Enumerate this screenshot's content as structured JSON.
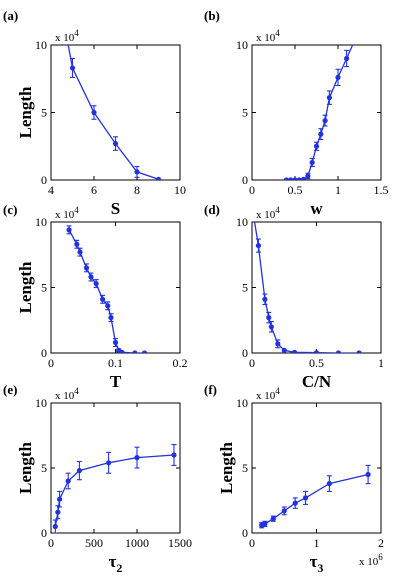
{
  "chart_data": [
    {
      "type": "line",
      "panel_label": "(a)",
      "xlabel": "S",
      "ylabel": "Length",
      "y_multiplier": "x 10",
      "y_multiplier_exp": "4",
      "xlim": [
        4,
        10
      ],
      "ylim": [
        0,
        10
      ],
      "xticks": [
        4,
        6,
        8,
        10
      ],
      "yticks": [
        0,
        5,
        10
      ],
      "color": "#2233dd",
      "curve": [
        [
          4.8,
          10
        ],
        [
          5,
          8.3
        ],
        [
          6,
          5
        ],
        [
          7,
          2.7
        ],
        [
          8,
          0.6
        ],
        [
          9,
          0.05
        ]
      ],
      "points": [
        {
          "x": 5,
          "y": 8.3,
          "err": 0.7
        },
        {
          "x": 6,
          "y": 5.0,
          "err": 0.5
        },
        {
          "x": 7,
          "y": 2.7,
          "err": 0.5
        },
        {
          "x": 8,
          "y": 0.6,
          "err": 0.4
        },
        {
          "x": 9,
          "y": 0.05,
          "err": 0
        }
      ]
    },
    {
      "type": "line",
      "panel_label": "(b)",
      "xlabel": "w",
      "ylabel": "",
      "y_multiplier": "x 10",
      "y_multiplier_exp": "4",
      "xlim": [
        0,
        1.5
      ],
      "ylim": [
        0,
        10
      ],
      "xticks": [
        0,
        0.5,
        1,
        1.5
      ],
      "yticks": [
        0,
        5,
        10
      ],
      "color": "#2233dd",
      "curve": [
        [
          0.4,
          0
        ],
        [
          0.6,
          0
        ],
        [
          0.65,
          0.3
        ],
        [
          0.7,
          1.3
        ],
        [
          0.75,
          2.5
        ],
        [
          0.8,
          3.4
        ],
        [
          0.85,
          4.4
        ],
        [
          0.9,
          6.1
        ],
        [
          1.0,
          7.6
        ],
        [
          1.1,
          9.0
        ],
        [
          1.17,
          10
        ]
      ],
      "points": [
        {
          "x": 0.4,
          "y": 0,
          "err": 0
        },
        {
          "x": 0.45,
          "y": 0,
          "err": 0
        },
        {
          "x": 0.5,
          "y": 0,
          "err": 0
        },
        {
          "x": 0.55,
          "y": 0,
          "err": 0
        },
        {
          "x": 0.6,
          "y": 0.05,
          "err": 0
        },
        {
          "x": 0.65,
          "y": 0.3,
          "err": 0.2
        },
        {
          "x": 0.7,
          "y": 1.3,
          "err": 0.3
        },
        {
          "x": 0.75,
          "y": 2.5,
          "err": 0.3
        },
        {
          "x": 0.8,
          "y": 3.4,
          "err": 0.4
        },
        {
          "x": 0.85,
          "y": 4.4,
          "err": 0.4
        },
        {
          "x": 0.9,
          "y": 6.1,
          "err": 0.5
        },
        {
          "x": 1.0,
          "y": 7.6,
          "err": 0.6
        },
        {
          "x": 1.1,
          "y": 9.0,
          "err": 0.6
        }
      ]
    },
    {
      "type": "line",
      "panel_label": "(c)",
      "xlabel": "T",
      "ylabel": "Length",
      "y_multiplier": "x 10",
      "y_multiplier_exp": "4",
      "xlim": [
        0,
        0.2
      ],
      "ylim": [
        0,
        10
      ],
      "xticks": [
        0,
        0.1,
        0.2
      ],
      "yticks": [
        0,
        5,
        10
      ],
      "color": "#2233dd",
      "curve": [
        [
          0.028,
          9.4
        ],
        [
          0.04,
          8.3
        ],
        [
          0.045,
          7.7
        ],
        [
          0.055,
          6.5
        ],
        [
          0.062,
          5.8
        ],
        [
          0.07,
          5.3
        ],
        [
          0.08,
          4.1
        ],
        [
          0.088,
          3.6
        ],
        [
          0.093,
          2.7
        ],
        [
          0.1,
          0.8
        ],
        [
          0.105,
          0.2
        ],
        [
          0.11,
          0.05
        ],
        [
          0.13,
          0
        ],
        [
          0.145,
          0
        ]
      ],
      "points": [
        {
          "x": 0.028,
          "y": 9.4,
          "err": 0.3
        },
        {
          "x": 0.04,
          "y": 8.3,
          "err": 0.3
        },
        {
          "x": 0.045,
          "y": 7.7,
          "err": 0.3
        },
        {
          "x": 0.055,
          "y": 6.5,
          "err": 0.3
        },
        {
          "x": 0.062,
          "y": 5.8,
          "err": 0.3
        },
        {
          "x": 0.07,
          "y": 5.3,
          "err": 0.3
        },
        {
          "x": 0.08,
          "y": 4.1,
          "err": 0.3
        },
        {
          "x": 0.088,
          "y": 3.6,
          "err": 0.3
        },
        {
          "x": 0.093,
          "y": 2.7,
          "err": 0.3
        },
        {
          "x": 0.1,
          "y": 0.8,
          "err": 0.3
        },
        {
          "x": 0.105,
          "y": 0.2,
          "err": 0.1
        },
        {
          "x": 0.11,
          "y": 0.05,
          "err": 0
        },
        {
          "x": 0.13,
          "y": 0,
          "err": 0
        },
        {
          "x": 0.145,
          "y": 0,
          "err": 0
        }
      ]
    },
    {
      "type": "line",
      "panel_label": "(d)",
      "xlabel": "C/N",
      "ylabel": "",
      "y_multiplier": "x 10",
      "y_multiplier_exp": "4",
      "xlim": [
        0,
        1
      ],
      "ylim": [
        0,
        10
      ],
      "xticks": [
        0,
        0.5,
        1
      ],
      "yticks": [
        0,
        5,
        10
      ],
      "color": "#2233dd",
      "curve": [
        [
          0.02,
          10
        ],
        [
          0.05,
          8.2
        ],
        [
          0.1,
          4.1
        ],
        [
          0.13,
          2.7
        ],
        [
          0.15,
          2.0
        ],
        [
          0.2,
          0.7
        ],
        [
          0.25,
          0.2
        ],
        [
          0.33,
          0.05
        ],
        [
          0.5,
          0.02
        ],
        [
          0.67,
          0
        ],
        [
          0.83,
          0
        ]
      ],
      "points": [
        {
          "x": 0.05,
          "y": 8.2,
          "err": 0.5
        },
        {
          "x": 0.1,
          "y": 4.1,
          "err": 0.4
        },
        {
          "x": 0.13,
          "y": 2.7,
          "err": 0.4
        },
        {
          "x": 0.15,
          "y": 2.0,
          "err": 0.4
        },
        {
          "x": 0.2,
          "y": 0.7,
          "err": 0.3
        },
        {
          "x": 0.25,
          "y": 0.2,
          "err": 0
        },
        {
          "x": 0.33,
          "y": 0.05,
          "err": 0
        },
        {
          "x": 0.5,
          "y": 0.02,
          "err": 0
        },
        {
          "x": 0.67,
          "y": 0,
          "err": 0
        },
        {
          "x": 0.83,
          "y": 0,
          "err": 0
        }
      ]
    },
    {
      "type": "line",
      "panel_label": "(e)",
      "xlabel": "τ",
      "xlabel_sub": "2",
      "ylabel": "Length",
      "y_multiplier": "x 10",
      "y_multiplier_exp": "4",
      "xlim": [
        0,
        1500
      ],
      "ylim": [
        0,
        10
      ],
      "xticks": [
        0,
        500,
        1000,
        1500
      ],
      "yticks": [
        0,
        5,
        10
      ],
      "color": "#2233dd",
      "curve": [
        [
          50,
          0.5
        ],
        [
          80,
          1.6
        ],
        [
          100,
          2.6
        ],
        [
          200,
          4.0
        ],
        [
          330,
          4.8
        ],
        [
          670,
          5.4
        ],
        [
          1000,
          5.8
        ],
        [
          1430,
          6.0
        ]
      ],
      "points": [
        {
          "x": 50,
          "y": 0.5,
          "err": 0.5
        },
        {
          "x": 80,
          "y": 1.6,
          "err": 0.5
        },
        {
          "x": 100,
          "y": 2.6,
          "err": 0.6
        },
        {
          "x": 200,
          "y": 4.0,
          "err": 0.6
        },
        {
          "x": 330,
          "y": 4.8,
          "err": 0.7
        },
        {
          "x": 670,
          "y": 5.4,
          "err": 0.8
        },
        {
          "x": 1000,
          "y": 5.8,
          "err": 0.8
        },
        {
          "x": 1430,
          "y": 6.0,
          "err": 0.8
        }
      ]
    },
    {
      "type": "line",
      "panel_label": "(f)",
      "xlabel": "τ",
      "xlabel_sub": "3",
      "ylabel": "Length",
      "y_multiplier": "x 10",
      "y_multiplier_exp": "4",
      "x_multiplier": "x 10",
      "x_multiplier_exp": "6",
      "xlim": [
        0,
        2
      ],
      "ylim": [
        0,
        10
      ],
      "xticks": [
        0,
        1,
        2
      ],
      "yticks": [
        0,
        5,
        10
      ],
      "color": "#2233dd",
      "curve": [
        [
          0.15,
          0.6
        ],
        [
          0.2,
          0.7
        ],
        [
          0.33,
          1.1
        ],
        [
          0.5,
          1.7
        ],
        [
          0.67,
          2.3
        ],
        [
          0.83,
          2.7
        ],
        [
          1.2,
          3.8
        ],
        [
          1.8,
          4.5
        ]
      ],
      "points": [
        {
          "x": 0.15,
          "y": 0.6,
          "err": 0.2
        },
        {
          "x": 0.2,
          "y": 0.7,
          "err": 0.2
        },
        {
          "x": 0.33,
          "y": 1.1,
          "err": 0.2
        },
        {
          "x": 0.5,
          "y": 1.7,
          "err": 0.3
        },
        {
          "x": 0.67,
          "y": 2.3,
          "err": 0.4
        },
        {
          "x": 0.83,
          "y": 2.7,
          "err": 0.5
        },
        {
          "x": 1.2,
          "y": 3.8,
          "err": 0.6
        },
        {
          "x": 1.8,
          "y": 4.5,
          "err": 0.7
        }
      ]
    }
  ]
}
